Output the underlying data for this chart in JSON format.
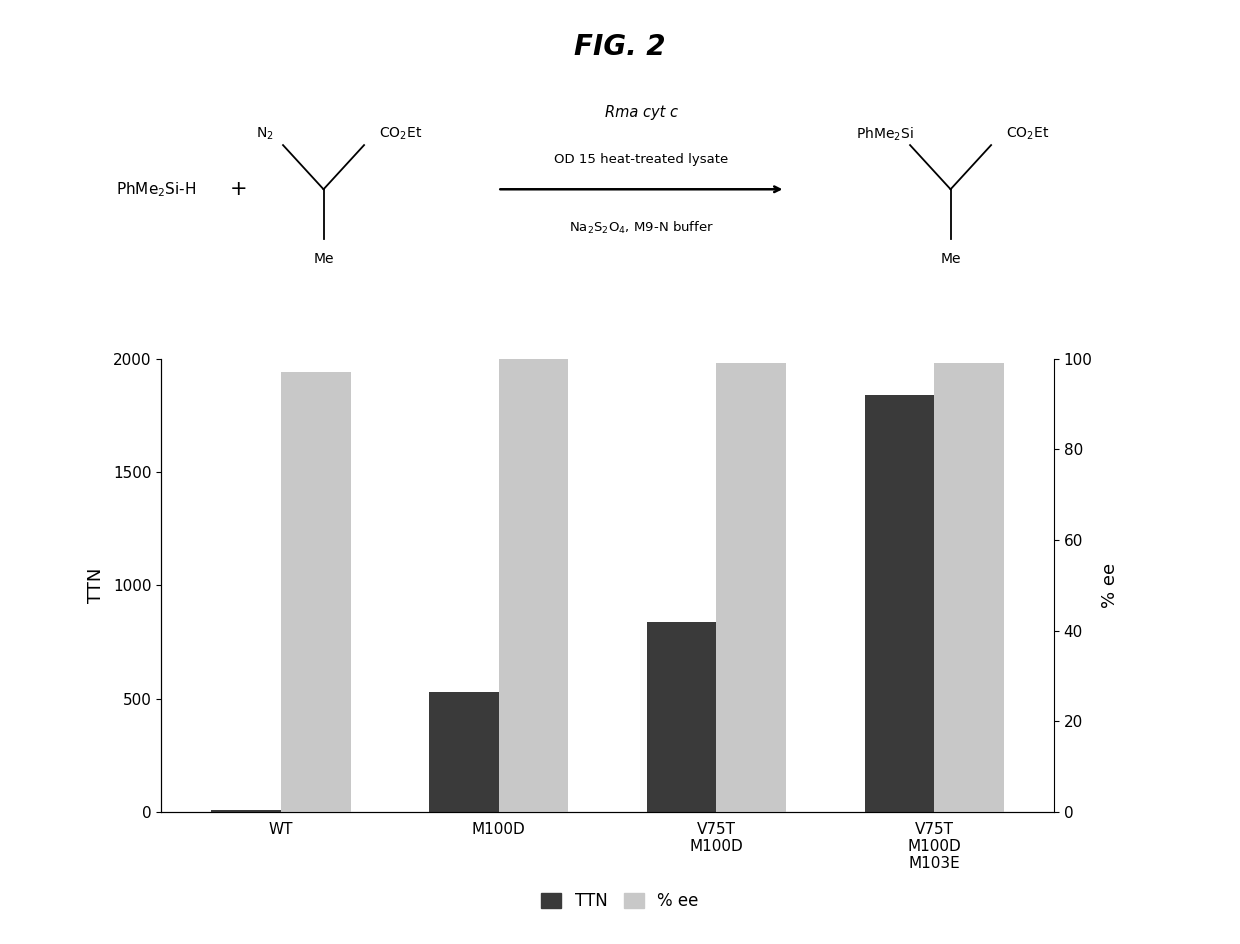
{
  "title": "FIG. 2",
  "categories": [
    "WT",
    "M100D",
    "V75T\nM100D",
    "V75T\nM100D\nM103E"
  ],
  "ttn_values": [
    10,
    530,
    840,
    1840
  ],
  "ee_values": [
    97,
    100,
    99,
    99
  ],
  "ttn_ylim": [
    0,
    2000
  ],
  "ee_ylim": [
    0,
    100
  ],
  "ttn_yticks": [
    0,
    500,
    1000,
    1500,
    2000
  ],
  "ee_yticks": [
    0,
    20,
    40,
    60,
    80,
    100
  ],
  "ttn_color": "#3a3a3a",
  "ee_color": "#c8c8c8",
  "ylabel_left": "TTN",
  "ylabel_right": "% ee",
  "bar_width": 0.32,
  "background_color": "#ffffff",
  "legend_labels": [
    "TTN",
    "% ee"
  ],
  "font_size_title": 20,
  "font_size_axis": 13,
  "font_size_tick": 11,
  "font_size_legend": 12,
  "chem_reactant1": "PhMe$_2$Si-H",
  "chem_plus": "+",
  "chem_n2": "N$_2$",
  "chem_co2et_r": "CO$_2$Et",
  "chem_me_r": "Me",
  "chem_cat1": "Rma cyt c",
  "chem_cat2": "OD 15 heat-treated lysate",
  "chem_cat3": "Na$_2$S$_2$O$_4$, M9-N buffer",
  "chem_phme2si": "PhMe$_2$Si",
  "chem_co2et_p": "CO$_2$Et",
  "chem_me_p": "Me"
}
